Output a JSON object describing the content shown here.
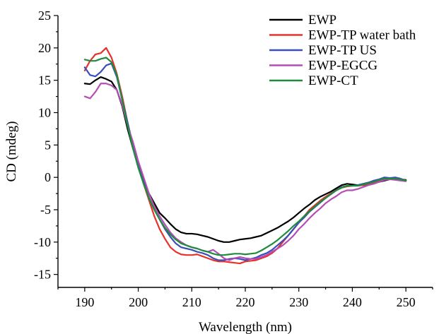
{
  "chart_data": {
    "type": "line",
    "title": "",
    "xlabel": "Wavelength (nm)",
    "ylabel": "CD (mdeg)",
    "xlim": [
      185,
      255
    ],
    "ylim": [
      -17,
      25
    ],
    "xticks": [
      190,
      200,
      210,
      220,
      230,
      240,
      250
    ],
    "yticks": [
      -15,
      -10,
      -5,
      0,
      5,
      10,
      15,
      20,
      25
    ],
    "grid": false,
    "legend_position": "top-right",
    "series": [
      {
        "name": "EWP",
        "color": "#000000",
        "x": [
          190,
          191,
          192,
          193,
          194,
          195,
          196,
          197,
          198,
          199,
          200,
          201,
          202,
          203,
          204,
          205,
          206,
          207,
          208,
          209,
          210,
          211,
          212,
          213,
          214,
          215,
          216,
          217,
          218,
          219,
          220,
          221,
          222,
          223,
          224,
          225,
          226,
          227,
          228,
          229,
          230,
          231,
          232,
          233,
          234,
          235,
          236,
          237,
          238,
          239,
          240,
          241,
          242,
          243,
          244,
          245,
          246,
          247,
          248,
          249,
          250
        ],
        "values": [
          14.5,
          14.4,
          15.0,
          15.5,
          15.2,
          14.8,
          13.5,
          11.0,
          7.5,
          4.5,
          2.0,
          -0.5,
          -2.5,
          -4.0,
          -5.5,
          -6.3,
          -7.2,
          -8.0,
          -8.5,
          -8.7,
          -8.7,
          -8.8,
          -9.0,
          -9.2,
          -9.5,
          -9.8,
          -10.0,
          -10.0,
          -9.8,
          -9.6,
          -9.5,
          -9.4,
          -9.2,
          -9.0,
          -8.6,
          -8.2,
          -7.8,
          -7.3,
          -6.8,
          -6.2,
          -5.5,
          -4.8,
          -4.2,
          -3.5,
          -3.0,
          -2.6,
          -2.2,
          -1.7,
          -1.2,
          -1.0,
          -1.1,
          -1.2,
          -1.2,
          -1.1,
          -0.9,
          -0.7,
          -0.5,
          -0.3,
          -0.2,
          -0.3,
          -0.4
        ]
      },
      {
        "name": "EWP-TP water bath",
        "color": "#e8312b",
        "x": [
          190,
          191,
          192,
          193,
          194,
          195,
          196,
          197,
          198,
          199,
          200,
          201,
          202,
          203,
          204,
          205,
          206,
          207,
          208,
          209,
          210,
          211,
          212,
          213,
          214,
          215,
          216,
          217,
          218,
          219,
          220,
          221,
          222,
          223,
          224,
          225,
          226,
          227,
          228,
          229,
          230,
          231,
          232,
          233,
          234,
          235,
          236,
          237,
          238,
          239,
          240,
          241,
          242,
          243,
          244,
          245,
          246,
          247,
          248,
          249,
          250
        ],
        "values": [
          16.5,
          18.0,
          19.0,
          19.2,
          20.0,
          18.5,
          16.0,
          12.5,
          8.5,
          5.0,
          2.0,
          -1.0,
          -3.5,
          -6.0,
          -8.0,
          -9.5,
          -10.8,
          -11.5,
          -11.9,
          -12.0,
          -12.0,
          -11.9,
          -12.2,
          -12.5,
          -12.8,
          -13.0,
          -13.0,
          -13.1,
          -13.2,
          -13.3,
          -13.0,
          -12.9,
          -12.8,
          -12.5,
          -12.2,
          -11.7,
          -11.0,
          -10.0,
          -9.0,
          -8.0,
          -7.0,
          -6.0,
          -5.0,
          -4.3,
          -3.6,
          -3.0,
          -2.5,
          -2.0,
          -1.6,
          -1.4,
          -1.3,
          -1.3,
          -1.2,
          -1.0,
          -0.8,
          -0.5,
          -0.3,
          -0.2,
          -0.3,
          -0.4,
          -0.5
        ]
      },
      {
        "name": "EWP-TP US",
        "color": "#3a4fb8",
        "x": [
          190,
          191,
          192,
          193,
          194,
          195,
          196,
          197,
          198,
          199,
          200,
          201,
          202,
          203,
          204,
          205,
          206,
          207,
          208,
          209,
          210,
          211,
          212,
          213,
          214,
          215,
          216,
          217,
          218,
          219,
          220,
          221,
          222,
          223,
          224,
          225,
          226,
          227,
          228,
          229,
          230,
          231,
          232,
          233,
          234,
          235,
          236,
          237,
          238,
          239,
          240,
          241,
          242,
          243,
          244,
          245,
          246,
          247,
          248,
          249,
          250
        ],
        "values": [
          17.0,
          15.8,
          15.6,
          16.3,
          17.3,
          17.6,
          15.5,
          12.0,
          8.5,
          5.0,
          2.0,
          -0.8,
          -3.2,
          -5.0,
          -6.5,
          -8.0,
          -9.2,
          -10.2,
          -10.8,
          -11.0,
          -11.2,
          -11.5,
          -11.7,
          -12.0,
          -12.5,
          -12.8,
          -12.8,
          -12.6,
          -12.5,
          -12.6,
          -12.8,
          -12.6,
          -12.4,
          -12.0,
          -11.7,
          -11.2,
          -10.5,
          -9.8,
          -9.0,
          -8.0,
          -7.0,
          -6.2,
          -5.3,
          -4.6,
          -3.9,
          -3.2,
          -2.6,
          -2.0,
          -1.5,
          -1.3,
          -1.3,
          -1.2,
          -1.0,
          -0.8,
          -0.5,
          -0.3,
          0.0,
          -0.1,
          0.0,
          -0.2,
          -0.5
        ]
      },
      {
        "name": "EWP-EGCG",
        "color": "#b64db5",
        "x": [
          190,
          191,
          192,
          193,
          194,
          195,
          196,
          197,
          198,
          199,
          200,
          201,
          202,
          203,
          204,
          205,
          206,
          207,
          208,
          209,
          210,
          211,
          212,
          213,
          214,
          215,
          216,
          217,
          218,
          219,
          220,
          221,
          222,
          223,
          224,
          225,
          226,
          227,
          228,
          229,
          230,
          231,
          232,
          233,
          234,
          235,
          236,
          237,
          238,
          239,
          240,
          241,
          242,
          243,
          244,
          245,
          246,
          247,
          248,
          249,
          250
        ],
        "values": [
          12.5,
          12.2,
          13.2,
          14.5,
          14.5,
          14.2,
          13.5,
          11.2,
          8.0,
          5.5,
          2.5,
          0.0,
          -2.5,
          -4.5,
          -6.0,
          -7.3,
          -8.5,
          -9.4,
          -10.0,
          -10.5,
          -10.8,
          -11.0,
          -11.3,
          -11.5,
          -11.2,
          -11.8,
          -12.5,
          -12.8,
          -12.5,
          -12.3,
          -12.5,
          -12.6,
          -12.6,
          -12.3,
          -12.0,
          -11.5,
          -11.0,
          -10.5,
          -9.8,
          -9.0,
          -8.0,
          -7.2,
          -6.3,
          -5.5,
          -4.8,
          -4.0,
          -3.4,
          -2.9,
          -2.3,
          -2.0,
          -2.0,
          -1.8,
          -1.5,
          -1.2,
          -1.0,
          -0.7,
          -0.4,
          -0.3,
          -0.4,
          -0.5,
          -0.6
        ]
      },
      {
        "name": "EWP-CT",
        "color": "#1f8c3b",
        "x": [
          190,
          191,
          192,
          193,
          194,
          195,
          196,
          197,
          198,
          199,
          200,
          201,
          202,
          203,
          204,
          205,
          206,
          207,
          208,
          209,
          210,
          211,
          212,
          213,
          214,
          215,
          216,
          217,
          218,
          219,
          220,
          221,
          222,
          223,
          224,
          225,
          226,
          227,
          228,
          229,
          230,
          231,
          232,
          233,
          234,
          235,
          236,
          237,
          238,
          239,
          240,
          241,
          242,
          243,
          244,
          245,
          246,
          247,
          248,
          249,
          250
        ],
        "values": [
          18.2,
          18.0,
          18.0,
          18.3,
          18.5,
          17.8,
          15.8,
          12.0,
          8.0,
          4.5,
          1.5,
          -1.0,
          -3.2,
          -5.0,
          -6.5,
          -7.8,
          -8.8,
          -9.6,
          -10.2,
          -10.5,
          -10.8,
          -11.0,
          -11.3,
          -11.5,
          -11.8,
          -12.0,
          -12.0,
          -11.9,
          -11.8,
          -11.8,
          -11.9,
          -11.8,
          -11.7,
          -11.3,
          -10.8,
          -10.3,
          -9.7,
          -9.0,
          -8.3,
          -7.5,
          -6.8,
          -6.0,
          -5.2,
          -4.5,
          -3.8,
          -3.2,
          -2.6,
          -2.0,
          -1.6,
          -1.3,
          -1.3,
          -1.3,
          -1.1,
          -0.9,
          -0.7,
          -0.4,
          -0.2,
          -0.2,
          -0.2,
          -0.3,
          -0.5
        ]
      }
    ]
  }
}
